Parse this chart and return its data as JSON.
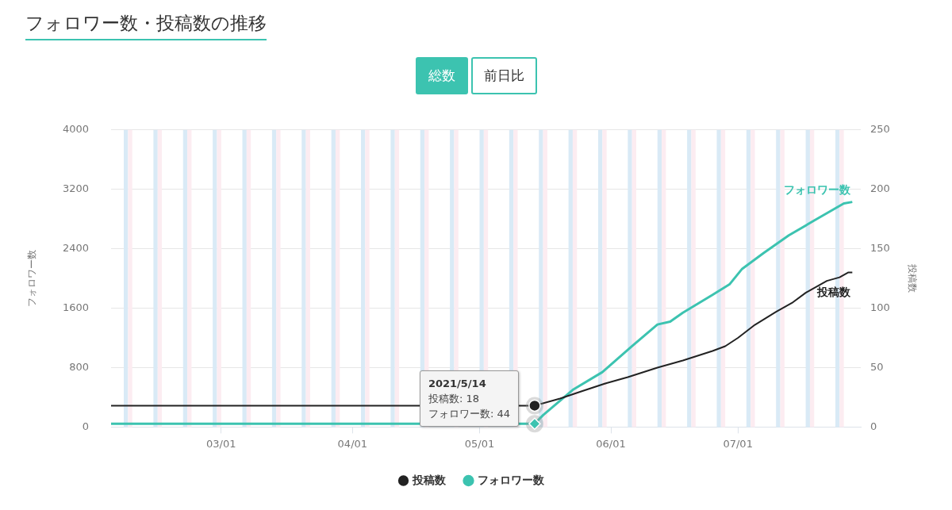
{
  "chart_data": {
    "type": "line",
    "title": "フォロワー数・投稿数の推移",
    "ylabel": "フォロワー数",
    "y2label": "投稿数",
    "annotations": [
      "総数",
      "前日比",
      {
        "text": "2021/5/14\n投稿数: 18\nフォロワー数: 44",
        "x": "2021-05-14",
        "y": 44
      }
    ],
    "xlim": [
      "2021-02-03",
      "2021-07-30"
    ],
    "xticks": [
      {
        "value": "2021-03-01",
        "label": "03/01"
      },
      {
        "value": "2021-04-01",
        "label": "04/01"
      },
      {
        "value": "2021-05-01",
        "label": "05/01"
      },
      {
        "value": "2021-06-01",
        "label": "06/01"
      },
      {
        "value": "2021-07-01",
        "label": "07/01"
      }
    ],
    "ylim": [
      0,
      4000
    ],
    "yticks": [
      0,
      800,
      1600,
      2400,
      3200,
      4000
    ],
    "y2lim": [
      0,
      250
    ],
    "y2ticks": [
      0,
      50,
      100,
      150,
      200,
      250
    ],
    "grid": "y",
    "legend": "bottom",
    "line_style": "solid",
    "series": [
      {
        "name": "投稿数",
        "color": "#222222",
        "axis": "y2",
        "x": [
          "2021-02-03",
          "2021-05-14",
          "2021-05-20",
          "2021-05-25",
          "2021-05-31",
          "2021-06-05",
          "2021-06-12",
          "2021-06-18",
          "2021-06-25",
          "2021-06-28",
          "2021-07-01",
          "2021-07-05",
          "2021-07-10",
          "2021-07-14",
          "2021-07-17",
          "2021-07-22",
          "2021-07-25",
          "2021-07-27",
          "2021-07-28"
        ],
        "values": [
          18,
          18,
          24,
          30,
          37,
          42,
          50,
          56,
          64,
          68,
          75,
          86,
          97,
          105,
          113,
          123,
          126,
          130,
          130
        ]
      },
      {
        "name": "フォロワー数",
        "color": "#3cc3b0",
        "x": [
          "2021-02-03",
          "2021-05-14",
          "2021-05-16",
          "2021-05-23",
          "2021-05-30",
          "2021-06-06",
          "2021-06-12",
          "2021-06-15",
          "2021-06-18",
          "2021-06-25",
          "2021-06-29",
          "2021-07-02",
          "2021-07-07",
          "2021-07-13",
          "2021-07-19",
          "2021-07-26",
          "2021-07-28"
        ],
        "values": [
          44,
          44,
          160,
          500,
          740,
          1090,
          1380,
          1420,
          1540,
          1780,
          1920,
          2130,
          2340,
          2580,
          2780,
          3010,
          3030
        ]
      }
    ],
    "bands": [
      {
        "axis": "x",
        "from": "2021-02-06",
        "to": "2021-02-07",
        "color": "#d9eaf6"
      },
      {
        "axis": "x",
        "from": "2021-02-07",
        "to": "2021-02-08",
        "color": "#fcecf1"
      },
      {
        "axis": "x",
        "from": "2021-02-13",
        "to": "2021-02-14",
        "color": "#d9eaf6"
      },
      {
        "axis": "x",
        "from": "2021-02-14",
        "to": "2021-02-15",
        "color": "#fcecf1"
      },
      {
        "axis": "x",
        "from": "2021-02-20",
        "to": "2021-02-21",
        "color": "#d9eaf6"
      },
      {
        "axis": "x",
        "from": "2021-02-21",
        "to": "2021-02-22",
        "color": "#fcecf1"
      },
      {
        "axis": "x",
        "from": "2021-02-27",
        "to": "2021-02-28",
        "color": "#d9eaf6"
      },
      {
        "axis": "x",
        "from": "2021-02-28",
        "to": "2021-03-01",
        "color": "#fcecf1"
      },
      {
        "axis": "x",
        "from": "2021-03-06",
        "to": "2021-03-07",
        "color": "#d9eaf6"
      },
      {
        "axis": "x",
        "from": "2021-03-07",
        "to": "2021-03-08",
        "color": "#fcecf1"
      },
      {
        "axis": "x",
        "from": "2021-03-13",
        "to": "2021-03-14",
        "color": "#d9eaf6"
      },
      {
        "axis": "x",
        "from": "2021-03-14",
        "to": "2021-03-15",
        "color": "#fcecf1"
      },
      {
        "axis": "x",
        "from": "2021-03-20",
        "to": "2021-03-21",
        "color": "#d9eaf6"
      },
      {
        "axis": "x",
        "from": "2021-03-21",
        "to": "2021-03-22",
        "color": "#fcecf1"
      },
      {
        "axis": "x",
        "from": "2021-03-27",
        "to": "2021-03-28",
        "color": "#d9eaf6"
      },
      {
        "axis": "x",
        "from": "2021-03-28",
        "to": "2021-03-29",
        "color": "#fcecf1"
      },
      {
        "axis": "x",
        "from": "2021-04-03",
        "to": "2021-04-04",
        "color": "#d9eaf6"
      },
      {
        "axis": "x",
        "from": "2021-04-04",
        "to": "2021-04-05",
        "color": "#fcecf1"
      },
      {
        "axis": "x",
        "from": "2021-04-10",
        "to": "2021-04-11",
        "color": "#d9eaf6"
      },
      {
        "axis": "x",
        "from": "2021-04-11",
        "to": "2021-04-12",
        "color": "#fcecf1"
      },
      {
        "axis": "x",
        "from": "2021-04-17",
        "to": "2021-04-18",
        "color": "#d9eaf6"
      },
      {
        "axis": "x",
        "from": "2021-04-18",
        "to": "2021-04-19",
        "color": "#fcecf1"
      },
      {
        "axis": "x",
        "from": "2021-04-24",
        "to": "2021-04-25",
        "color": "#d9eaf6"
      },
      {
        "axis": "x",
        "from": "2021-04-25",
        "to": "2021-04-26",
        "color": "#fcecf1"
      },
      {
        "axis": "x",
        "from": "2021-05-01",
        "to": "2021-05-02",
        "color": "#d9eaf6"
      },
      {
        "axis": "x",
        "from": "2021-05-02",
        "to": "2021-05-03",
        "color": "#fcecf1"
      },
      {
        "axis": "x",
        "from": "2021-05-08",
        "to": "2021-05-09",
        "color": "#d9eaf6"
      },
      {
        "axis": "x",
        "from": "2021-05-09",
        "to": "2021-05-10",
        "color": "#fcecf1"
      },
      {
        "axis": "x",
        "from": "2021-05-15",
        "to": "2021-05-16",
        "color": "#d9eaf6"
      },
      {
        "axis": "x",
        "from": "2021-05-16",
        "to": "2021-05-17",
        "color": "#fcecf1"
      },
      {
        "axis": "x",
        "from": "2021-05-22",
        "to": "2021-05-23",
        "color": "#d9eaf6"
      },
      {
        "axis": "x",
        "from": "2021-05-23",
        "to": "2021-05-24",
        "color": "#fcecf1"
      },
      {
        "axis": "x",
        "from": "2021-05-29",
        "to": "2021-05-30",
        "color": "#d9eaf6"
      },
      {
        "axis": "x",
        "from": "2021-05-30",
        "to": "2021-05-31",
        "color": "#fcecf1"
      },
      {
        "axis": "x",
        "from": "2021-06-05",
        "to": "2021-06-06",
        "color": "#d9eaf6"
      },
      {
        "axis": "x",
        "from": "2021-06-06",
        "to": "2021-06-07",
        "color": "#fcecf1"
      },
      {
        "axis": "x",
        "from": "2021-06-12",
        "to": "2021-06-13",
        "color": "#d9eaf6"
      },
      {
        "axis": "x",
        "from": "2021-06-13",
        "to": "2021-06-14",
        "color": "#fcecf1"
      },
      {
        "axis": "x",
        "from": "2021-06-19",
        "to": "2021-06-20",
        "color": "#d9eaf6"
      },
      {
        "axis": "x",
        "from": "2021-06-20",
        "to": "2021-06-21",
        "color": "#fcecf1"
      },
      {
        "axis": "x",
        "from": "2021-06-26",
        "to": "2021-06-27",
        "color": "#d9eaf6"
      },
      {
        "axis": "x",
        "from": "2021-06-27",
        "to": "2021-06-28",
        "color": "#fcecf1"
      },
      {
        "axis": "x",
        "from": "2021-07-03",
        "to": "2021-07-04",
        "color": "#d9eaf6"
      },
      {
        "axis": "x",
        "from": "2021-07-04",
        "to": "2021-07-05",
        "color": "#fcecf1"
      },
      {
        "axis": "x",
        "from": "2021-07-10",
        "to": "2021-07-11",
        "color": "#d9eaf6"
      },
      {
        "axis": "x",
        "from": "2021-07-11",
        "to": "2021-07-12",
        "color": "#fcecf1"
      },
      {
        "axis": "x",
        "from": "2021-07-17",
        "to": "2021-07-18",
        "color": "#d9eaf6"
      },
      {
        "axis": "x",
        "from": "2021-07-18",
        "to": "2021-07-19",
        "color": "#fcecf1"
      },
      {
        "axis": "x",
        "from": "2021-07-24",
        "to": "2021-07-25",
        "color": "#d9eaf6"
      },
      {
        "axis": "x",
        "from": "2021-07-25",
        "to": "2021-07-26",
        "color": "#fcecf1"
      }
    ]
  }
}
